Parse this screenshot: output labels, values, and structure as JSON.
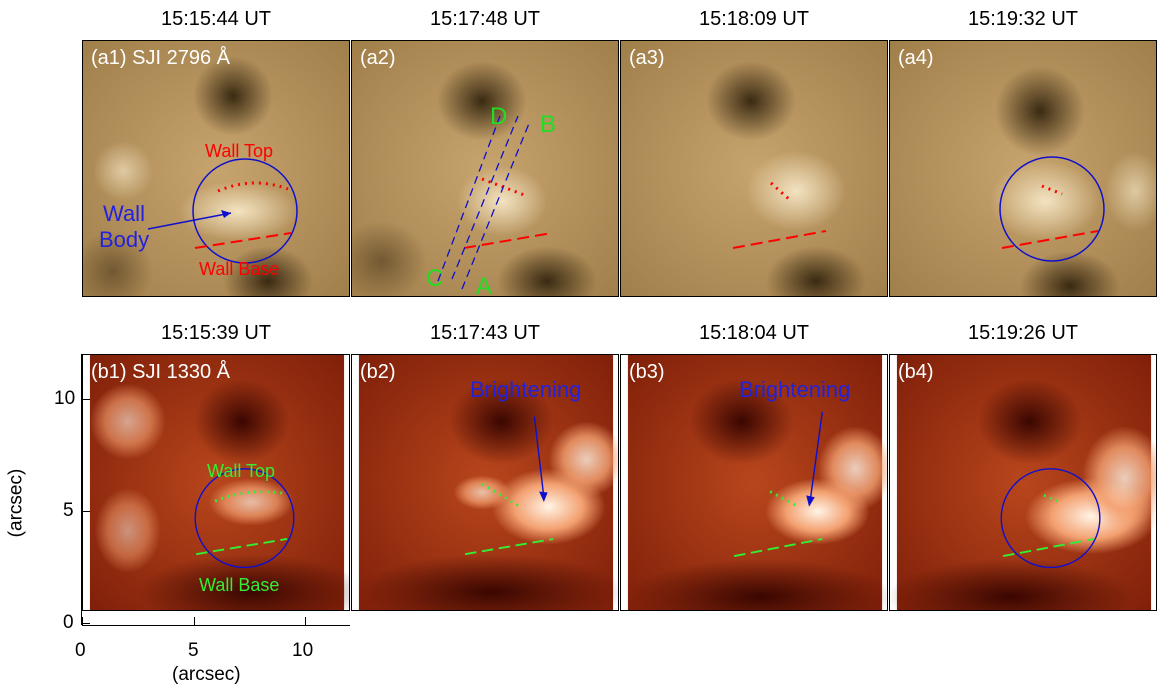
{
  "timestamps_top": [
    "15:15:44 UT",
    "15:17:48 UT",
    "15:18:09 UT",
    "15:19:32 UT"
  ],
  "timestamps_bottom": [
    "15:15:39 UT",
    "15:17:43 UT",
    "15:18:04 UT",
    "15:19:26 UT"
  ],
  "panels_top": [
    "(a1) SJI 2796 Å",
    "(a2)",
    "(a3)",
    "(a4)"
  ],
  "panels_bottom": [
    "(b1) SJI 1330 Å",
    "(b2)",
    "(b3)",
    "(b4)"
  ],
  "annotations": {
    "wall_top": "Wall Top",
    "wall_base": "Wall Base",
    "wall_body_line1": "Wall",
    "wall_body_line2": "Body",
    "slit_a": "A",
    "slit_b": "B",
    "slit_c": "C",
    "slit_d": "D",
    "brightening": "Brightening"
  },
  "axes": {
    "y_label": "(arcsec)",
    "x_label": "(arcsec)",
    "y_ticks": [
      "10",
      "5",
      "0"
    ],
    "x_ticks": [
      "0",
      "5",
      "10"
    ]
  },
  "colors": {
    "mg_panel": "#b8935c",
    "si_panel": "#9c2a10",
    "wall_marker_top_row": "#ff0000",
    "wall_marker_bottom_row": "#33ee33",
    "circle": "#1010cc",
    "slit_label": "#22dd22",
    "callout": "#2222dd"
  }
}
